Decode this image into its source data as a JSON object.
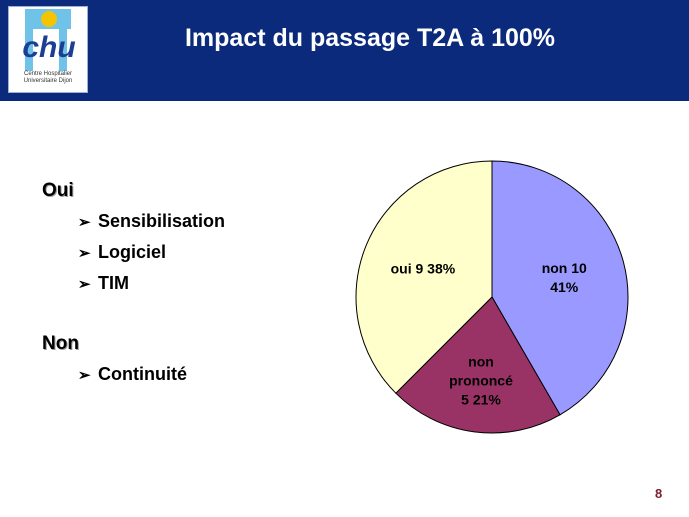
{
  "header": {
    "title": "Impact du passage T2A à 100%",
    "logo": {
      "text": "chu",
      "line1": "Centre Hospitalier",
      "line2": "Universitaire Dijon"
    }
  },
  "content": {
    "oui": {
      "heading": "Oui",
      "bullets": [
        "Sensibilisation",
        "Logiciel",
        "TIM"
      ]
    },
    "non": {
      "heading": "Non",
      "bullets": [
        "Continuité"
      ]
    }
  },
  "chart_data": {
    "type": "pie",
    "slices": [
      {
        "label": "non",
        "value": 10,
        "percent": 41,
        "color": "#9999ff",
        "label_lines": [
          "non 10",
          "41%"
        ]
      },
      {
        "label": "non prononcé",
        "value": 5,
        "percent": 21,
        "color": "#993366",
        "label_lines": [
          "non",
          "prononcé",
          "5 21%"
        ]
      },
      {
        "label": "oui",
        "value": 9,
        "percent": 38,
        "color": "#ffffcc",
        "label_lines": [
          "oui 9 38%"
        ]
      }
    ]
  },
  "footer": {
    "page_number": "8"
  },
  "colors": {
    "header_bg": "#0b2a7c",
    "page_number": "#7a1e2a"
  }
}
